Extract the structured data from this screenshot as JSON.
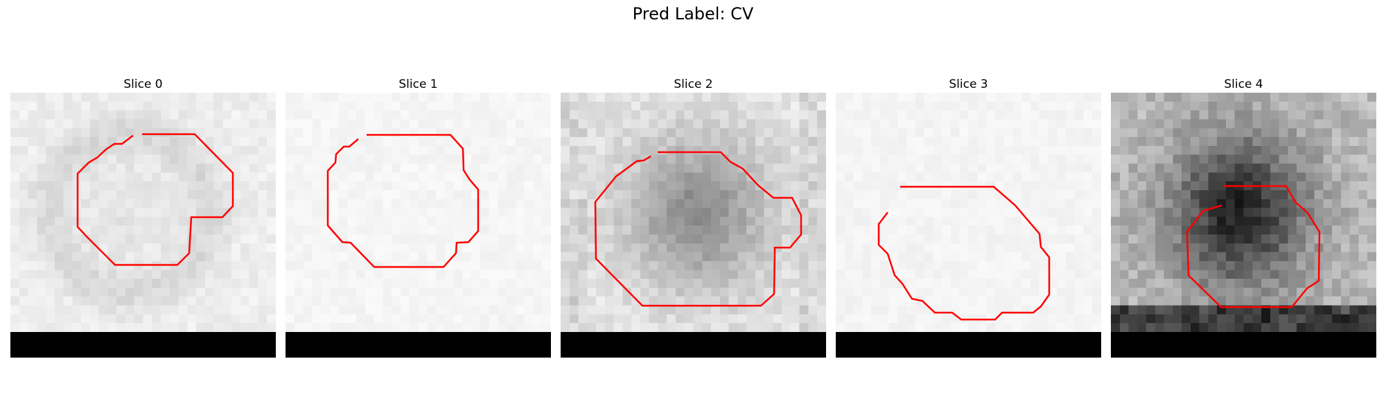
{
  "figure": {
    "title": "Pred Label: CV",
    "outline_color": "#ff0000"
  },
  "panels": [
    {
      "title": "Slice 0",
      "tone": "light-with-gray-ring"
    },
    {
      "title": "Slice 1",
      "tone": "near-white"
    },
    {
      "title": "Slice 2",
      "tone": "mid-gray-blob"
    },
    {
      "title": "Slice 3",
      "tone": "near-white"
    },
    {
      "title": "Slice 4",
      "tone": "dark-core"
    }
  ]
}
